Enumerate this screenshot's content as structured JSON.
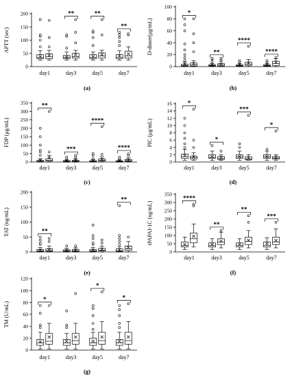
{
  "figure": {
    "panels": [
      "a",
      "b",
      "c",
      "d",
      "e",
      "f",
      "g"
    ]
  },
  "chart_data": [
    {
      "id": "a",
      "type": "box",
      "panel_label": "(a)",
      "title": "",
      "xlabel": "",
      "ylabel": "APTT (sec)",
      "ylim": [
        0,
        200
      ],
      "yticks": [
        0,
        50,
        100,
        150,
        200
      ],
      "categories": [
        "day1",
        "day3",
        "day5",
        "day7"
      ],
      "series": [
        {
          "boxes": [
            {
              "min": 25,
              "q1": 30,
              "median": 35,
              "q3": 45,
              "max": 60,
              "mean": 38,
              "outliers": [
                75,
                100,
                115,
                120,
                178
              ]
            },
            {
              "min": 25,
              "q1": 30,
              "median": 35,
              "q3": 42,
              "max": 55,
              "mean": 36,
              "outliers": [
                70,
                115,
                120
              ]
            },
            {
              "min": 25,
              "q1": 30,
              "median": 35,
              "q3": 45,
              "max": 55,
              "mean": 38,
              "outliers": [
                80,
                110,
                130,
                135
              ]
            },
            {
              "min": 25,
              "q1": 30,
              "median": 35,
              "q3": 45,
              "max": 60,
              "mean": 40,
              "outliers": [
                80,
                95,
                110,
                120,
                130
              ]
            }
          ]
        },
        {
          "boxes": [
            {
              "min": 25,
              "q1": 30,
              "median": 37,
              "q3": 48,
              "max": 62,
              "mean": 42,
              "outliers": [
                75,
                110,
                175
              ]
            },
            {
              "min": 25,
              "q1": 32,
              "median": 38,
              "q3": 50,
              "max": 62,
              "mean": 45,
              "outliers": [
                90,
                130,
                178
              ]
            },
            {
              "min": 25,
              "q1": 32,
              "median": 40,
              "q3": 52,
              "max": 62,
              "mean": 45,
              "outliers": [
                120,
                178
              ]
            },
            {
              "min": 25,
              "q1": 32,
              "median": 40,
              "q3": 58,
              "max": 75,
              "mean": 48,
              "outliers": [
                120,
                125
              ]
            }
          ]
        }
      ],
      "significance": [
        "",
        "**",
        "**",
        "**"
      ]
    },
    {
      "id": "b",
      "type": "box",
      "panel_label": "(b)",
      "title": "",
      "xlabel": "",
      "ylabel": "D-dimer(μg/mL)",
      "ylim": [
        0,
        100
      ],
      "yticks": [
        0,
        20,
        40,
        60,
        80,
        100
      ],
      "categories": [
        "day1",
        "day3",
        "day5",
        "day7"
      ],
      "series": [
        {
          "boxes": [
            {
              "min": 0,
              "q1": 1,
              "median": 2,
              "q3": 4,
              "max": 8,
              "mean": 4,
              "outliers": [
                10,
                15,
                20,
                28,
                38,
                60,
                70,
                80
              ]
            },
            {
              "min": 0,
              "q1": 1,
              "median": 2,
              "q3": 3,
              "max": 5,
              "mean": 3,
              "outliers": [
                8,
                12,
                14
              ]
            },
            {
              "min": 0,
              "q1": 1,
              "median": 2,
              "q3": 3,
              "max": 5,
              "mean": 3,
              "outliers": [
                8,
                10
              ]
            },
            {
              "min": 0,
              "q1": 1,
              "median": 2,
              "q3": 3,
              "max": 5,
              "mean": 3,
              "outliers": [
                8,
                10
              ]
            }
          ]
        },
        {
          "boxes": [
            {
              "min": 0,
              "q1": 1,
              "median": 3,
              "q3": 6,
              "max": 10,
              "mean": 5,
              "outliers": [
                25,
                40,
                55,
                80
              ]
            },
            {
              "min": 0,
              "q1": 1,
              "median": 3,
              "q3": 5,
              "max": 9,
              "mean": 4,
              "outliers": [
                12,
                14
              ]
            },
            {
              "min": 0,
              "q1": 2,
              "median": 4,
              "q3": 7,
              "max": 12,
              "mean": 6,
              "outliers": [
                34
              ]
            },
            {
              "min": 0,
              "q1": 2,
              "median": 5,
              "q3": 9,
              "max": 13,
              "mean": 7,
              "outliers": [
                15
              ]
            }
          ]
        }
      ],
      "significance": [
        "*",
        "**",
        "****",
        "****"
      ]
    },
    {
      "id": "c",
      "type": "box",
      "panel_label": "(c)",
      "title": "",
      "xlabel": "",
      "ylabel": "FDP (μg/mL)",
      "ylim": [
        0,
        350
      ],
      "yticks": [
        0,
        50,
        100,
        150,
        200,
        250,
        300,
        350
      ],
      "categories": [
        "day1",
        "day3",
        "day5",
        "day7"
      ],
      "series": [
        {
          "boxes": [
            {
              "min": 0,
              "q1": 2,
              "median": 5,
              "q3": 10,
              "max": 20,
              "mean": 10,
              "outliers": [
                40,
                60,
                70,
                100,
                150,
                200
              ]
            },
            {
              "min": 0,
              "q1": 2,
              "median": 4,
              "q3": 8,
              "max": 12,
              "mean": 6,
              "outliers": [
                20,
                30
              ]
            },
            {
              "min": 0,
              "q1": 2,
              "median": 4,
              "q3": 8,
              "max": 15,
              "mean": 8,
              "outliers": [
                20,
                40,
                50
              ]
            },
            {
              "min": 0,
              "q1": 2,
              "median": 4,
              "q3": 7,
              "max": 12,
              "mean": 6,
              "outliers": [
                20,
                30
              ]
            }
          ]
        },
        {
          "boxes": [
            {
              "min": 0,
              "q1": 5,
              "median": 10,
              "q3": 20,
              "max": 40,
              "mean": 25,
              "outliers": [
                60,
                300
              ]
            },
            {
              "min": 0,
              "q1": 3,
              "median": 6,
              "q3": 10,
              "max": 20,
              "mean": 10,
              "outliers": [
                30,
                40
              ]
            },
            {
              "min": 0,
              "q1": 5,
              "median": 10,
              "q3": 18,
              "max": 30,
              "mean": 15,
              "outliers": [
                45,
                210
              ]
            },
            {
              "min": 0,
              "q1": 4,
              "median": 8,
              "q3": 15,
              "max": 25,
              "mean": 12,
              "outliers": [
                40,
                48
              ]
            }
          ]
        }
      ],
      "significance": [
        "**",
        "***",
        "****",
        "****"
      ]
    },
    {
      "id": "d",
      "type": "box",
      "panel_label": "(d)",
      "title": "",
      "xlabel": "",
      "ylabel": "PIC (μg/mL)",
      "ylim": [
        0,
        16
      ],
      "yticks": [
        0,
        2,
        4,
        6,
        8,
        10,
        12,
        14,
        16
      ],
      "categories": [
        "day1",
        "day3",
        "day5",
        "day7"
      ],
      "series": [
        {
          "boxes": [
            {
              "min": 0.5,
              "q1": 1.0,
              "median": 1.5,
              "q3": 2.2,
              "max": 3.5,
              "mean": 1.8,
              "outliers": [
                4,
                5,
                6.5,
                8,
                10,
                12
              ]
            },
            {
              "min": 0.5,
              "q1": 1.0,
              "median": 1.3,
              "q3": 2.0,
              "max": 3.0,
              "mean": 1.5,
              "outliers": [
                4.5
              ]
            },
            {
              "min": 0.5,
              "q1": 1.0,
              "median": 1.4,
              "q3": 2.0,
              "max": 3.0,
              "mean": 1.5,
              "outliers": [
                4,
                5
              ]
            },
            {
              "min": 0.5,
              "q1": 1.0,
              "median": 1.4,
              "q3": 2.0,
              "max": 3.0,
              "mean": 1.5,
              "outliers": [
                3.5
              ]
            }
          ]
        },
        {
          "boxes": [
            {
              "min": 0.5,
              "q1": 0.8,
              "median": 1.2,
              "q3": 1.6,
              "max": 2.5,
              "mean": 1.4,
              "outliers": [
                4,
                6,
                14.5
              ]
            },
            {
              "min": 0.5,
              "q1": 0.7,
              "median": 1.0,
              "q3": 1.5,
              "max": 2.0,
              "mean": 1.2,
              "outliers": [
                3
              ]
            },
            {
              "min": 0.5,
              "q1": 0.6,
              "median": 0.9,
              "q3": 1.4,
              "max": 2.0,
              "mean": 1.1,
              "outliers": [
                12.8
              ]
            },
            {
              "min": 0.5,
              "q1": 0.8,
              "median": 1.1,
              "q3": 1.5,
              "max": 2.0,
              "mean": 1.2,
              "outliers": [
                8.5
              ]
            }
          ]
        }
      ],
      "significance": [
        "*",
        "*",
        "***",
        "*"
      ]
    },
    {
      "id": "e",
      "type": "box",
      "panel_label": "(e)",
      "title": "",
      "xlabel": "",
      "ylabel": "TAT (ng/mL)",
      "ylim": [
        0,
        200
      ],
      "yticks": [
        0,
        50,
        100,
        150,
        200
      ],
      "categories": [
        "day1",
        "day3",
        "day5",
        "day7"
      ],
      "series": [
        {
          "boxes": [
            {
              "min": 0,
              "q1": 2,
              "median": 4,
              "q3": 8,
              "max": 15,
              "mean": 6,
              "outliers": [
                25,
                30,
                40,
                50
              ]
            },
            {
              "min": 0,
              "q1": 2,
              "median": 4,
              "q3": 7,
              "max": 12,
              "mean": 5,
              "outliers": [
                20
              ]
            },
            {
              "min": 0,
              "q1": 2,
              "median": 4,
              "q3": 8,
              "max": 15,
              "mean": 6,
              "outliers": [
                25,
                30,
                45,
                55,
                90
              ]
            },
            {
              "min": 0,
              "q1": 2,
              "median": 4,
              "q3": 10,
              "max": 18,
              "mean": 7,
              "outliers": [
                25,
                35,
                45,
                55,
                155
              ]
            }
          ]
        },
        {
          "boxes": [
            {
              "min": 0,
              "q1": 2,
              "median": 5,
              "q3": 10,
              "max": 20,
              "mean": 8,
              "outliers": [
                35,
                45
              ]
            },
            {
              "min": 0,
              "q1": 2,
              "median": 4,
              "q3": 8,
              "max": 14,
              "mean": 6,
              "outliers": [
                20
              ]
            },
            {
              "min": 0,
              "q1": 3,
              "median": 6,
              "q3": 12,
              "max": 20,
              "mean": 9,
              "outliers": [
                30,
                40
              ]
            },
            {
              "min": 0,
              "q1": 5,
              "median": 10,
              "q3": 20,
              "max": 35,
              "mean": 15,
              "outliers": [
                50
              ]
            }
          ]
        }
      ],
      "significance": [
        "**",
        "",
        "",
        "**"
      ]
    },
    {
      "id": "f",
      "type": "box",
      "panel_label": "(f)",
      "title": "",
      "xlabel": "",
      "ylabel": "tPAPAI-1C (ng/mL)",
      "ylim": [
        0,
        350
      ],
      "yticks": [
        0,
        50,
        100,
        150,
        200,
        250,
        300,
        350
      ],
      "categories": [
        "day1",
        "day3",
        "day5",
        "day7"
      ],
      "series": [
        {
          "boxes": [
            {
              "min": 15,
              "q1": 30,
              "median": 40,
              "q3": 60,
              "max": 90,
              "mean": 45,
              "outliers": []
            },
            {
              "min": 15,
              "q1": 30,
              "median": 40,
              "q3": 55,
              "max": 80,
              "mean": 45,
              "outliers": []
            },
            {
              "min": 15,
              "q1": 30,
              "median": 40,
              "q3": 55,
              "max": 80,
              "mean": 45,
              "outliers": []
            },
            {
              "min": 15,
              "q1": 30,
              "median": 40,
              "q3": 60,
              "max": 85,
              "mean": 50,
              "outliers": []
            }
          ]
        },
        {
          "boxes": [
            {
              "min": 30,
              "q1": 55,
              "median": 80,
              "q3": 115,
              "max": 170,
              "mean": 95,
              "outliers": [
                280,
                290
              ]
            },
            {
              "min": 25,
              "q1": 45,
              "median": 60,
              "q3": 80,
              "max": 120,
              "mean": 65,
              "outliers": [
                130
              ]
            },
            {
              "min": 25,
              "q1": 45,
              "median": 65,
              "q3": 90,
              "max": 130,
              "mean": 70,
              "outliers": [
                180,
                220
              ]
            },
            {
              "min": 25,
              "q1": 45,
              "median": 60,
              "q3": 90,
              "max": 140,
              "mean": 70,
              "outliers": [
                180
              ]
            }
          ]
        }
      ],
      "significance": [
        "****",
        "**",
        "**",
        "***"
      ]
    },
    {
      "id": "g",
      "type": "box",
      "panel_label": "(g)",
      "title": "",
      "xlabel": "",
      "ylabel": "TM (U/mL)",
      "ylim": [
        0,
        120
      ],
      "yticks": [
        0,
        20,
        40,
        60,
        80,
        100,
        120
      ],
      "categories": [
        "day1",
        "day3",
        "day5",
        "day7"
      ],
      "series": [
        {
          "boxes": [
            {
              "min": 2,
              "q1": 8,
              "median": 12,
              "q3": 18,
              "max": 30,
              "mean": 14,
              "outliers": [
                38,
                42,
                62,
                75
              ]
            },
            {
              "min": 2,
              "q1": 8,
              "median": 12,
              "q3": 18,
              "max": 28,
              "mean": 15,
              "outliers": [
                38,
                42,
                66
              ]
            },
            {
              "min": 2,
              "q1": 8,
              "median": 12,
              "q3": 20,
              "max": 30,
              "mean": 15,
              "outliers": [
                35,
                45,
                58,
                70,
                75
              ]
            },
            {
              "min": 2,
              "q1": 8,
              "median": 12,
              "q3": 18,
              "max": 30,
              "mean": 15,
              "outliers": [
                38,
                45,
                58,
                68,
                75
              ]
            }
          ]
        },
        {
          "boxes": [
            {
              "min": 2,
              "q1": 10,
              "median": 15,
              "q3": 28,
              "max": 45,
              "mean": 22,
              "outliers": [
                75
              ]
            },
            {
              "min": 2,
              "q1": 10,
              "median": 16,
              "q3": 28,
              "max": 45,
              "mean": 22,
              "outliers": [
                95
              ]
            },
            {
              "min": 2,
              "q1": 10,
              "median": 16,
              "q3": 30,
              "max": 48,
              "mean": 22,
              "outliers": [
                98
              ]
            },
            {
              "min": 2,
              "q1": 10,
              "median": 16,
              "q3": 30,
              "max": 48,
              "mean": 22,
              "outliers": [
                78
              ]
            }
          ]
        }
      ],
      "significance": [
        "*",
        "",
        "*",
        "*"
      ]
    }
  ]
}
